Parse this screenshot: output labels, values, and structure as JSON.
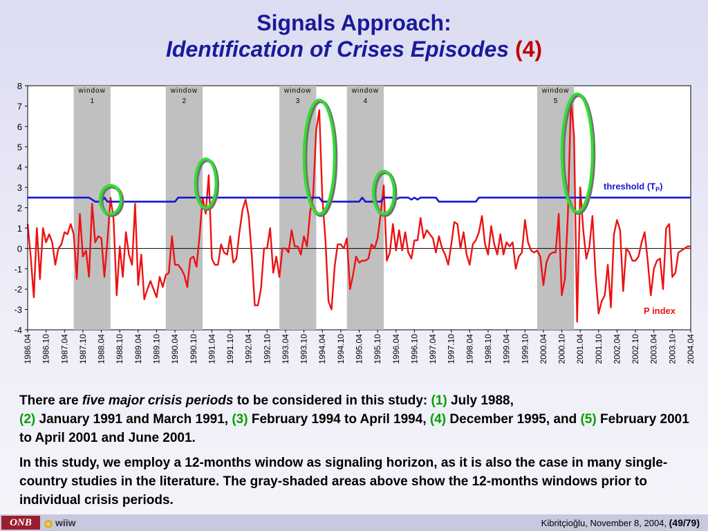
{
  "title": {
    "line1": "Signals Approach:",
    "line2": "Identification of Crises Episodes",
    "number": "(4)"
  },
  "chart_data": {
    "type": "line",
    "y_range": [
      -4,
      8
    ],
    "y_ticks": [
      "8",
      "7",
      "6",
      "5",
      "4",
      "3",
      "2",
      "1",
      "0",
      "-1",
      "-2",
      "-3",
      "-4"
    ],
    "x_start": "1986.04",
    "x_end": "2004.04",
    "x_ticks": [
      "1986.04",
      "1986.10",
      "1987.04",
      "1987.10",
      "1988.04",
      "1988.10",
      "1989.04",
      "1989.10",
      "1990.04",
      "1990.10",
      "1991.04",
      "1991.10",
      "1992.04",
      "1992.10",
      "1993.04",
      "1993.10",
      "1994.04",
      "1994.10",
      "1995.04",
      "1995.10",
      "1996.04",
      "1996.10",
      "1997.04",
      "1997.10",
      "1998.04",
      "1998.10",
      "1999.04",
      "1999.10",
      "2000.04",
      "2000.10",
      "2001.04",
      "2001.10",
      "2002.04",
      "2002.10",
      "2003.04",
      "2003.10",
      "2004.04"
    ],
    "windows": [
      {
        "label": "window",
        "number": "1",
        "start": "1987.07",
        "end": "1988.07"
      },
      {
        "label": "window",
        "number": "2",
        "start": "1990.01",
        "end": "1991.01"
      },
      {
        "label": "window",
        "number": "3",
        "start": "1993.02",
        "end": "1994.02"
      },
      {
        "label": "window",
        "number": "4",
        "start": "1994.12",
        "end": "1995.12"
      },
      {
        "label": "window",
        "number": "5",
        "start": "2000.02",
        "end": "2001.02"
      }
    ],
    "crisis_markers": [
      {
        "date": "1988.07",
        "y_low": 1.7,
        "y_high": 3.1
      },
      {
        "date": "1991.02",
        "y_low": 2.0,
        "y_high": 4.4
      },
      {
        "date": "1994.03",
        "y_low": 1.7,
        "y_high": 7.3
      },
      {
        "date": "1995.12",
        "y_low": 1.7,
        "y_high": 3.8
      },
      {
        "date": "2001.03",
        "y_low": 1.8,
        "y_high": 7.6
      }
    ],
    "series": [
      {
        "name": "P index",
        "color": "#ee1111",
        "points": [
          [
            "1986.04",
            1.2
          ],
          [
            "1986.05",
            -0.4
          ],
          [
            "1986.06",
            -2.4
          ],
          [
            "1986.07",
            1.0
          ],
          [
            "1986.08",
            -1.5
          ],
          [
            "1986.09",
            1.0
          ],
          [
            "1986.10",
            0.3
          ],
          [
            "1986.11",
            0.7
          ],
          [
            "1986.12",
            0.3
          ],
          [
            "1987.01",
            -0.8
          ],
          [
            "1987.02",
            0.0
          ],
          [
            "1987.03",
            0.2
          ],
          [
            "1987.04",
            0.8
          ],
          [
            "1987.05",
            0.7
          ],
          [
            "1987.06",
            1.2
          ],
          [
            "1987.07",
            0.7
          ],
          [
            "1987.08",
            -1.5
          ],
          [
            "1987.09",
            1.7
          ],
          [
            "1987.10",
            -0.4
          ],
          [
            "1987.11",
            -0.1
          ],
          [
            "1987.12",
            -1.4
          ],
          [
            "1988.01",
            2.2
          ],
          [
            "1988.02",
            0.3
          ],
          [
            "1988.03",
            0.6
          ],
          [
            "1988.04",
            0.5
          ],
          [
            "1988.05",
            -1.4
          ],
          [
            "1988.06",
            0.4
          ],
          [
            "1988.07",
            2.5
          ],
          [
            "1988.08",
            1.4
          ],
          [
            "1988.09",
            -2.3
          ],
          [
            "1988.10",
            0.1
          ],
          [
            "1988.11",
            -1.4
          ],
          [
            "1988.12",
            0.8
          ],
          [
            "1989.01",
            -0.3
          ],
          [
            "1989.02",
            -0.8
          ],
          [
            "1989.03",
            2.2
          ],
          [
            "1989.04",
            -1.8
          ],
          [
            "1989.05",
            -0.3
          ],
          [
            "1989.06",
            -2.5
          ],
          [
            "1989.07",
            -2.0
          ],
          [
            "1989.08",
            -1.6
          ],
          [
            "1989.09",
            -2.0
          ],
          [
            "1989.10",
            -2.4
          ],
          [
            "1989.11",
            -1.4
          ],
          [
            "1989.12",
            -1.9
          ],
          [
            "1990.01",
            -1.3
          ],
          [
            "1990.02",
            -1.2
          ],
          [
            "1990.03",
            0.6
          ],
          [
            "1990.04",
            -0.8
          ],
          [
            "1990.05",
            -0.8
          ],
          [
            "1990.06",
            -1.0
          ],
          [
            "1990.07",
            -1.3
          ],
          [
            "1990.08",
            -1.9
          ],
          [
            "1990.09",
            -0.5
          ],
          [
            "1990.10",
            -0.4
          ],
          [
            "1990.11",
            -0.9
          ],
          [
            "1990.12",
            0.6
          ],
          [
            "1991.01",
            2.5
          ],
          [
            "1991.02",
            1.7
          ],
          [
            "1991.03",
            3.6
          ],
          [
            "1991.04",
            -0.5
          ],
          [
            "1991.05",
            -0.8
          ],
          [
            "1991.06",
            -0.8
          ],
          [
            "1991.07",
            0.2
          ],
          [
            "1991.08",
            -0.2
          ],
          [
            "1991.09",
            -0.3
          ],
          [
            "1991.10",
            0.6
          ],
          [
            "1991.11",
            -0.7
          ],
          [
            "1991.12",
            -0.5
          ],
          [
            "1992.01",
            0.8
          ],
          [
            "1992.02",
            1.9
          ],
          [
            "1992.03",
            2.4
          ],
          [
            "1992.04",
            1.6
          ],
          [
            "1992.05",
            -0.3
          ],
          [
            "1992.06",
            -2.8
          ],
          [
            "1992.07",
            -2.8
          ],
          [
            "1992.08",
            -2.0
          ],
          [
            "1992.09",
            0.0
          ],
          [
            "1992.10",
            0.0
          ],
          [
            "1992.11",
            1.0
          ],
          [
            "1992.12",
            -1.2
          ],
          [
            "1993.01",
            -0.4
          ],
          [
            "1993.02",
            -1.4
          ],
          [
            "1993.03",
            0.0
          ],
          [
            "1993.04",
            0.0
          ],
          [
            "1993.05",
            -0.2
          ],
          [
            "1993.06",
            0.9
          ],
          [
            "1993.07",
            0.1
          ],
          [
            "1993.08",
            0.1
          ],
          [
            "1993.09",
            -0.3
          ],
          [
            "1993.10",
            0.6
          ],
          [
            "1993.11",
            0.1
          ],
          [
            "1993.12",
            1.8
          ],
          [
            "1994.01",
            2.6
          ],
          [
            "1994.02",
            5.8
          ],
          [
            "1994.03",
            6.8
          ],
          [
            "1994.04",
            2.5
          ],
          [
            "1994.05",
            0.4
          ],
          [
            "1994.06",
            -2.6
          ],
          [
            "1994.07",
            -3.0
          ],
          [
            "1994.08",
            -0.9
          ],
          [
            "1994.09",
            0.2
          ],
          [
            "1994.10",
            0.2
          ],
          [
            "1994.11",
            0.0
          ],
          [
            "1994.12",
            0.5
          ],
          [
            "1995.01",
            -2.0
          ],
          [
            "1995.02",
            -1.3
          ],
          [
            "1995.03",
            -0.4
          ],
          [
            "1995.04",
            -0.7
          ],
          [
            "1995.05",
            -0.6
          ],
          [
            "1995.06",
            -0.6
          ],
          [
            "1995.07",
            -0.5
          ],
          [
            "1995.08",
            0.2
          ],
          [
            "1995.09",
            0.0
          ],
          [
            "1995.10",
            0.5
          ],
          [
            "1995.11",
            1.7
          ],
          [
            "1995.12",
            3.1
          ],
          [
            "1996.01",
            -0.6
          ],
          [
            "1996.02",
            -0.2
          ],
          [
            "1996.03",
            1.2
          ],
          [
            "1996.04",
            -0.1
          ],
          [
            "1996.05",
            0.9
          ],
          [
            "1996.06",
            -0.1
          ],
          [
            "1996.07",
            0.8
          ],
          [
            "1996.08",
            -0.2
          ],
          [
            "1996.09",
            -0.5
          ],
          [
            "1996.10",
            0.4
          ],
          [
            "1996.11",
            0.4
          ],
          [
            "1996.12",
            1.5
          ],
          [
            "1997.01",
            0.5
          ],
          [
            "1997.02",
            0.9
          ],
          [
            "1997.03",
            0.7
          ],
          [
            "1997.04",
            0.5
          ],
          [
            "1997.05",
            -0.2
          ],
          [
            "1997.06",
            0.6
          ],
          [
            "1997.07",
            0.0
          ],
          [
            "1997.08",
            -0.3
          ],
          [
            "1997.09",
            -0.8
          ],
          [
            "1997.10",
            0.2
          ],
          [
            "1997.11",
            1.3
          ],
          [
            "1997.12",
            1.2
          ],
          [
            "1998.01",
            0.0
          ],
          [
            "1998.02",
            0.8
          ],
          [
            "1998.03",
            -0.3
          ],
          [
            "1998.04",
            -0.8
          ],
          [
            "1998.05",
            0.2
          ],
          [
            "1998.06",
            0.4
          ],
          [
            "1998.07",
            0.8
          ],
          [
            "1998.08",
            1.6
          ],
          [
            "1998.09",
            0.2
          ],
          [
            "1998.10",
            -0.3
          ],
          [
            "1998.11",
            1.1
          ],
          [
            "1998.12",
            0.2
          ],
          [
            "1999.01",
            -0.3
          ],
          [
            "1999.02",
            0.7
          ],
          [
            "1999.03",
            -0.3
          ],
          [
            "1999.04",
            0.3
          ],
          [
            "1999.05",
            0.1
          ],
          [
            "1999.06",
            0.3
          ],
          [
            "1999.07",
            -1.0
          ],
          [
            "1999.08",
            -0.4
          ],
          [
            "1999.09",
            -0.2
          ],
          [
            "1999.10",
            1.4
          ],
          [
            "1999.11",
            0.3
          ],
          [
            "1999.12",
            -0.1
          ],
          [
            "2000.01",
            -0.2
          ],
          [
            "2000.02",
            -0.1
          ],
          [
            "2000.03",
            -0.4
          ],
          [
            "2000.04",
            -1.8
          ],
          [
            "2000.05",
            -0.7
          ],
          [
            "2000.06",
            -0.3
          ],
          [
            "2000.07",
            -0.2
          ],
          [
            "2000.08",
            -0.2
          ],
          [
            "2000.09",
            1.7
          ],
          [
            "2000.10",
            -2.3
          ],
          [
            "2000.11",
            -1.5
          ],
          [
            "2000.12",
            1.7
          ],
          [
            "2001.01",
            7.4
          ],
          [
            "2001.02",
            5.5
          ],
          [
            "2001.03",
            -3.6
          ],
          [
            "2001.04",
            3.0
          ],
          [
            "2001.05",
            0.9
          ],
          [
            "2001.06",
            -0.5
          ],
          [
            "2001.07",
            0.1
          ],
          [
            "2001.08",
            1.6
          ],
          [
            "2001.09",
            -1.3
          ],
          [
            "2001.10",
            -3.2
          ],
          [
            "2001.11",
            -2.6
          ],
          [
            "2001.12",
            -2.3
          ],
          [
            "2002.01",
            -0.8
          ],
          [
            "2002.02",
            -2.9
          ],
          [
            "2002.03",
            0.7
          ],
          [
            "2002.04",
            1.4
          ],
          [
            "2002.05",
            0.9
          ],
          [
            "2002.06",
            -2.1
          ],
          [
            "2002.07",
            0.0
          ],
          [
            "2002.08",
            -0.2
          ],
          [
            "2002.09",
            -0.6
          ],
          [
            "2002.10",
            -0.6
          ],
          [
            "2002.11",
            -0.4
          ],
          [
            "2002.12",
            0.3
          ],
          [
            "2003.01",
            0.8
          ],
          [
            "2003.02",
            -0.6
          ],
          [
            "2003.03",
            -2.3
          ],
          [
            "2003.04",
            -1.0
          ],
          [
            "2003.05",
            -0.6
          ],
          [
            "2003.06",
            -0.5
          ],
          [
            "2003.07",
            -2.0
          ],
          [
            "2003.08",
            1.0
          ],
          [
            "2003.09",
            1.2
          ],
          [
            "2003.10",
            -1.4
          ],
          [
            "2003.11",
            -1.2
          ],
          [
            "2003.12",
            -0.2
          ],
          [
            "2004.01",
            -0.1
          ],
          [
            "2004.02",
            0.0
          ],
          [
            "2004.03",
            0.1
          ],
          [
            "2004.04",
            0.1
          ]
        ]
      },
      {
        "name": "threshold (T_P)",
        "color": "#1515d0",
        "points": [
          [
            "1986.04",
            2.5
          ],
          [
            "1987.12",
            2.5
          ],
          [
            "1988.01",
            2.4
          ],
          [
            "1988.02",
            2.3
          ],
          [
            "1988.04",
            2.3
          ],
          [
            "1988.05",
            2.5
          ],
          [
            "1988.06",
            2.3
          ],
          [
            "1990.04",
            2.3
          ],
          [
            "1990.05",
            2.5
          ],
          [
            "1994.03",
            2.5
          ],
          [
            "1994.04",
            2.3
          ],
          [
            "1995.04",
            2.3
          ],
          [
            "1995.05",
            2.5
          ],
          [
            "1995.06",
            2.3
          ],
          [
            "1995.11",
            2.3
          ],
          [
            "1995.12",
            2.5
          ],
          [
            "1996.03",
            2.5
          ],
          [
            "1996.04",
            2.4
          ],
          [
            "1996.05",
            2.5
          ],
          [
            "1996.08",
            2.5
          ],
          [
            "1996.09",
            2.4
          ],
          [
            "1996.10",
            2.5
          ],
          [
            "1996.11",
            2.4
          ],
          [
            "1996.12",
            2.5
          ],
          [
            "1997.05",
            2.5
          ],
          [
            "1997.06",
            2.3
          ],
          [
            "1998.06",
            2.3
          ],
          [
            "1998.07",
            2.5
          ],
          [
            "2004.04",
            2.5
          ]
        ]
      }
    ],
    "labels": {
      "threshold": "threshold (T",
      "threshold_sub": "P",
      "threshold_close": ")",
      "p_index": "P index"
    }
  },
  "text": {
    "p1_a": "There are ",
    "p1_em": "five major crisis periods",
    "p1_b": " to be considered in this study: ",
    "p1_n1": "(1)",
    "p1_c": " July 1988, ",
    "p1_n2": "(2)",
    "p1_d": " January 1991 and March 1991, ",
    "p1_n3": "(3)",
    "p1_e": " February 1994 to April 1994, ",
    "p1_n4": "(4)",
    "p1_f": " December 1995, and ",
    "p1_n5": "(5)",
    "p1_g": " February 2001 to April 2001 and June 2001.",
    "p2": "In this study, we employ a 12-months window as signaling horizon, as it is also the case in many single-country studies in the literature. The gray-shaded areas above show the 12-months windows prior to individual crisis periods."
  },
  "footer": {
    "logo_left": "ONB",
    "logo_right": "wiiw",
    "author_date": "Kibritçioğlu, November 8, 2004, ",
    "page": "(49/79)"
  }
}
